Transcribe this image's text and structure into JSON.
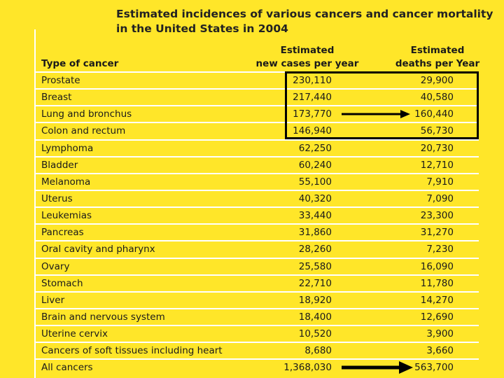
{
  "title": {
    "line1": "Estimated incidences of various cancers and cancer mortality",
    "line2": "in the United States in 2004"
  },
  "header": {
    "type_label": "Type of cancer",
    "cases_line1": "Estimated",
    "cases_line2": "new cases per year",
    "deaths_line1": "Estimated",
    "deaths_line2": "deaths per Year"
  },
  "rows": [
    {
      "type": "Prostate",
      "cases": "230,110",
      "deaths": "29,900"
    },
    {
      "type": "Breast",
      "cases": "217,440",
      "deaths": "40,580"
    },
    {
      "type": "Lung and bronchus",
      "cases": "173,770",
      "deaths": "160,440"
    },
    {
      "type": "Colon and rectum",
      "cases": "146,940",
      "deaths": "56,730"
    },
    {
      "type": "Lymphoma",
      "cases": "62,250",
      "deaths": "20,730"
    },
    {
      "type": "Bladder",
      "cases": "60,240",
      "deaths": "12,710"
    },
    {
      "type": "Melanoma",
      "cases": "55,100",
      "deaths": "7,910"
    },
    {
      "type": "Uterus",
      "cases": "40,320",
      "deaths": "7,090"
    },
    {
      "type": "Leukemias",
      "cases": "33,440",
      "deaths": "23,300"
    },
    {
      "type": "Pancreas",
      "cases": "31,860",
      "deaths": "31,270"
    },
    {
      "type": "Oral cavity and pharynx",
      "cases": "28,260",
      "deaths": "7,230"
    },
    {
      "type": "Ovary",
      "cases": "25,580",
      "deaths": "16,090"
    },
    {
      "type": "Stomach",
      "cases": "22,710",
      "deaths": "11,780"
    },
    {
      "type": "Liver",
      "cases": "18,920",
      "deaths": "14,270"
    },
    {
      "type": "Brain and nervous system",
      "cases": "18,400",
      "deaths": "12,690"
    },
    {
      "type": "Uterine cervix",
      "cases": "10,520",
      "deaths": "3,900"
    },
    {
      "type": "Cancers of soft tissues including heart",
      "cases": "8,680",
      "deaths": "3,660"
    },
    {
      "type": "All cancers",
      "cases": "1,368,030",
      "deaths": "563,700"
    }
  ],
  "colors": {
    "background": "#FFE629",
    "rule": "#ffffff",
    "annotation": "#000000"
  }
}
